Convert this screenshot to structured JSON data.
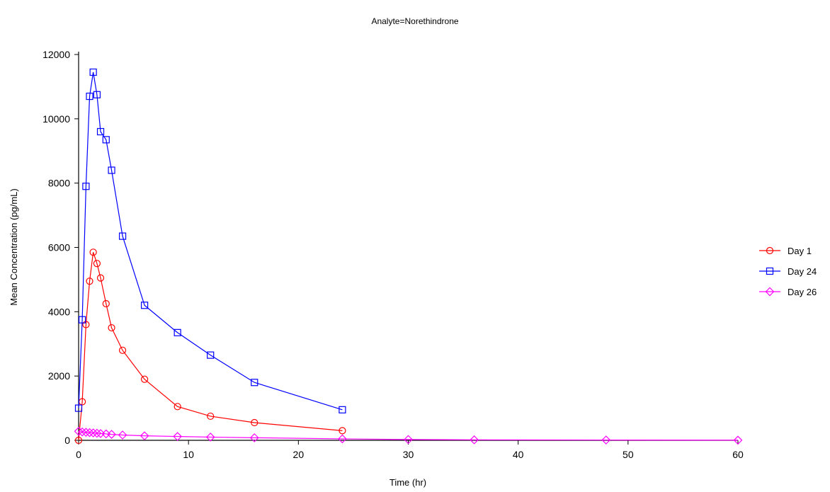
{
  "chart_data": {
    "type": "line",
    "title": "Analyte=Norethindrone",
    "xlabel": "Time (hr)",
    "ylabel": "Mean Concentration (pg/mL)",
    "xlim": [
      0,
      60
    ],
    "ylim": [
      0,
      12000
    ],
    "x_ticks": [
      0,
      10,
      20,
      30,
      40,
      50,
      60
    ],
    "y_ticks": [
      0,
      2000,
      4000,
      6000,
      8000,
      10000,
      12000
    ],
    "grid": false,
    "legend_position": "right",
    "series": [
      {
        "name": "Day 1",
        "color": "#ff0000",
        "marker": "circle",
        "points": [
          [
            0,
            0
          ],
          [
            0.33,
            1200
          ],
          [
            0.67,
            3600
          ],
          [
            1,
            4950
          ],
          [
            1.33,
            5850
          ],
          [
            1.67,
            5500
          ],
          [
            2,
            5050
          ],
          [
            2.5,
            4250
          ],
          [
            3,
            3500
          ],
          [
            4,
            2800
          ],
          [
            6,
            1900
          ],
          [
            9,
            1050
          ],
          [
            12,
            750
          ],
          [
            16,
            550
          ],
          [
            24,
            300
          ]
        ]
      },
      {
        "name": "Day 24",
        "color": "#0000ff",
        "marker": "square",
        "points": [
          [
            0,
            1000
          ],
          [
            0.33,
            3750
          ],
          [
            0.67,
            7900
          ],
          [
            1,
            10700
          ],
          [
            1.33,
            11450
          ],
          [
            1.67,
            10750
          ],
          [
            2,
            9600
          ],
          [
            2.5,
            9350
          ],
          [
            3,
            8400
          ],
          [
            4,
            6350
          ],
          [
            6,
            4200
          ],
          [
            9,
            3350
          ],
          [
            12,
            2650
          ],
          [
            16,
            1800
          ],
          [
            24,
            950
          ]
        ]
      },
      {
        "name": "Day 26",
        "color": "#ff00ff",
        "marker": "diamond",
        "points": [
          [
            0,
            280
          ],
          [
            0.33,
            260
          ],
          [
            0.67,
            250
          ],
          [
            1,
            240
          ],
          [
            1.33,
            230
          ],
          [
            1.67,
            220
          ],
          [
            2,
            210
          ],
          [
            2.5,
            200
          ],
          [
            3,
            185
          ],
          [
            4,
            165
          ],
          [
            6,
            140
          ],
          [
            9,
            120
          ],
          [
            12,
            100
          ],
          [
            16,
            80
          ],
          [
            24,
            45
          ],
          [
            30,
            25
          ],
          [
            36,
            15
          ],
          [
            48,
            10
          ],
          [
            60,
            5
          ]
        ]
      }
    ]
  }
}
